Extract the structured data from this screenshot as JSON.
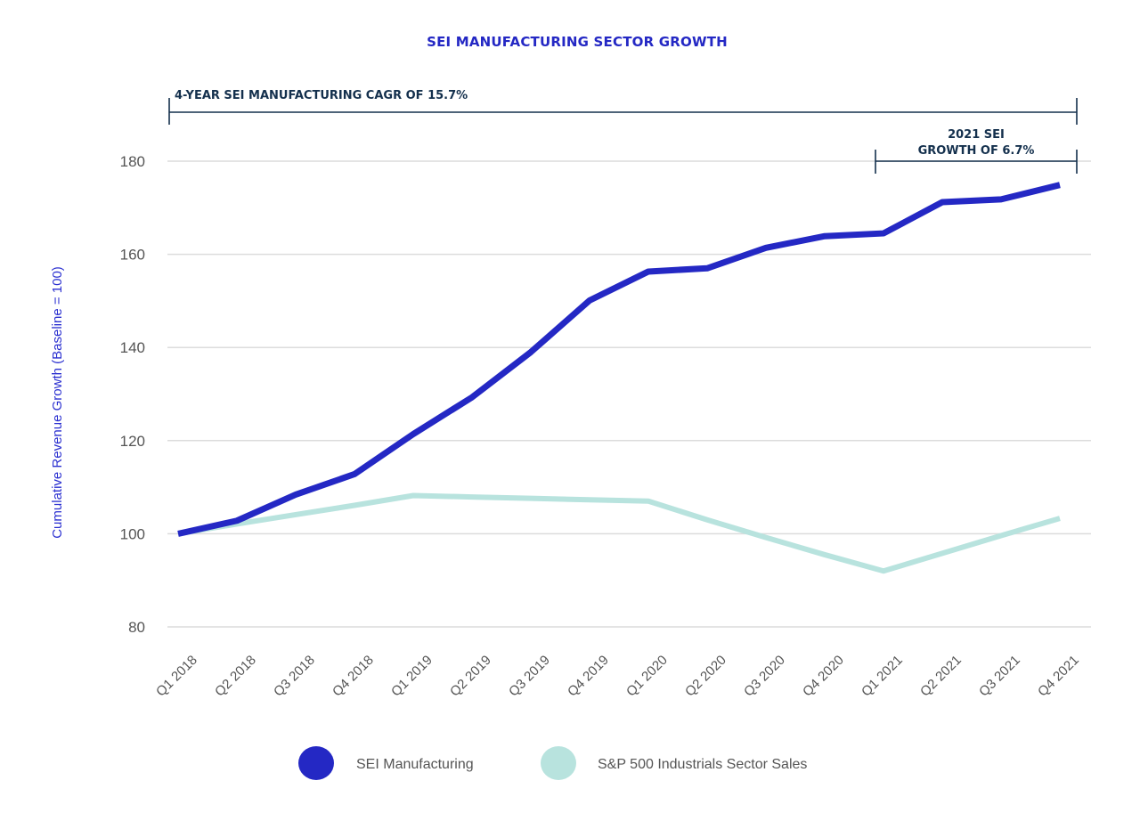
{
  "chart_data": {
    "type": "line",
    "title": "SEI MANUFACTURING SECTOR GROWTH",
    "xlabel": "",
    "ylabel": "Cumulative Revenue Growth (Baseline = 100)",
    "ylim": [
      80,
      190
    ],
    "yticks": [
      80,
      100,
      120,
      140,
      160,
      180
    ],
    "grid": true,
    "legend_position": "bottom-center",
    "categories": [
      "Q1 2018",
      "Q2 2018",
      "Q3 2018",
      "Q4 2018",
      "Q1 2019",
      "Q2 2019",
      "Q3 2019",
      "Q4 2019",
      "Q1 2020",
      "Q2 2020",
      "Q3 2020",
      "Q4 2020",
      "Q1 2021",
      "Q2 2021",
      "Q3 2021",
      "Q4 2021"
    ],
    "series": [
      {
        "name": "SEI Manufacturing",
        "color": "#2428c4",
        "values": [
          100,
          102.8,
          108.4,
          112.8,
          121.4,
          129.3,
          139.0,
          150.1,
          156.3,
          157.0,
          161.4,
          163.9,
          164.5,
          171.2,
          171.8,
          174.9
        ]
      },
      {
        "name": "S&P 500 Industrials Sector Sales",
        "color": "#b8e3de",
        "values": [
          100,
          102.1,
          104.1,
          106.1,
          108.2,
          107.9,
          107.6,
          107.3,
          107.0,
          103.0,
          99.2,
          95.5,
          92.0,
          95.8,
          99.6,
          103.3
        ]
      }
    ],
    "annotations": [
      {
        "label": "4-YEAR SEI MANUFACTURING CAGR OF 15.7%",
        "from": "Q1 2018",
        "to": "Q4 2021"
      },
      {
        "label_lines": [
          "2021 SEI",
          "GROWTH OF 6.7%"
        ],
        "from": "Q1 2021",
        "to": "Q4 2021"
      }
    ]
  }
}
